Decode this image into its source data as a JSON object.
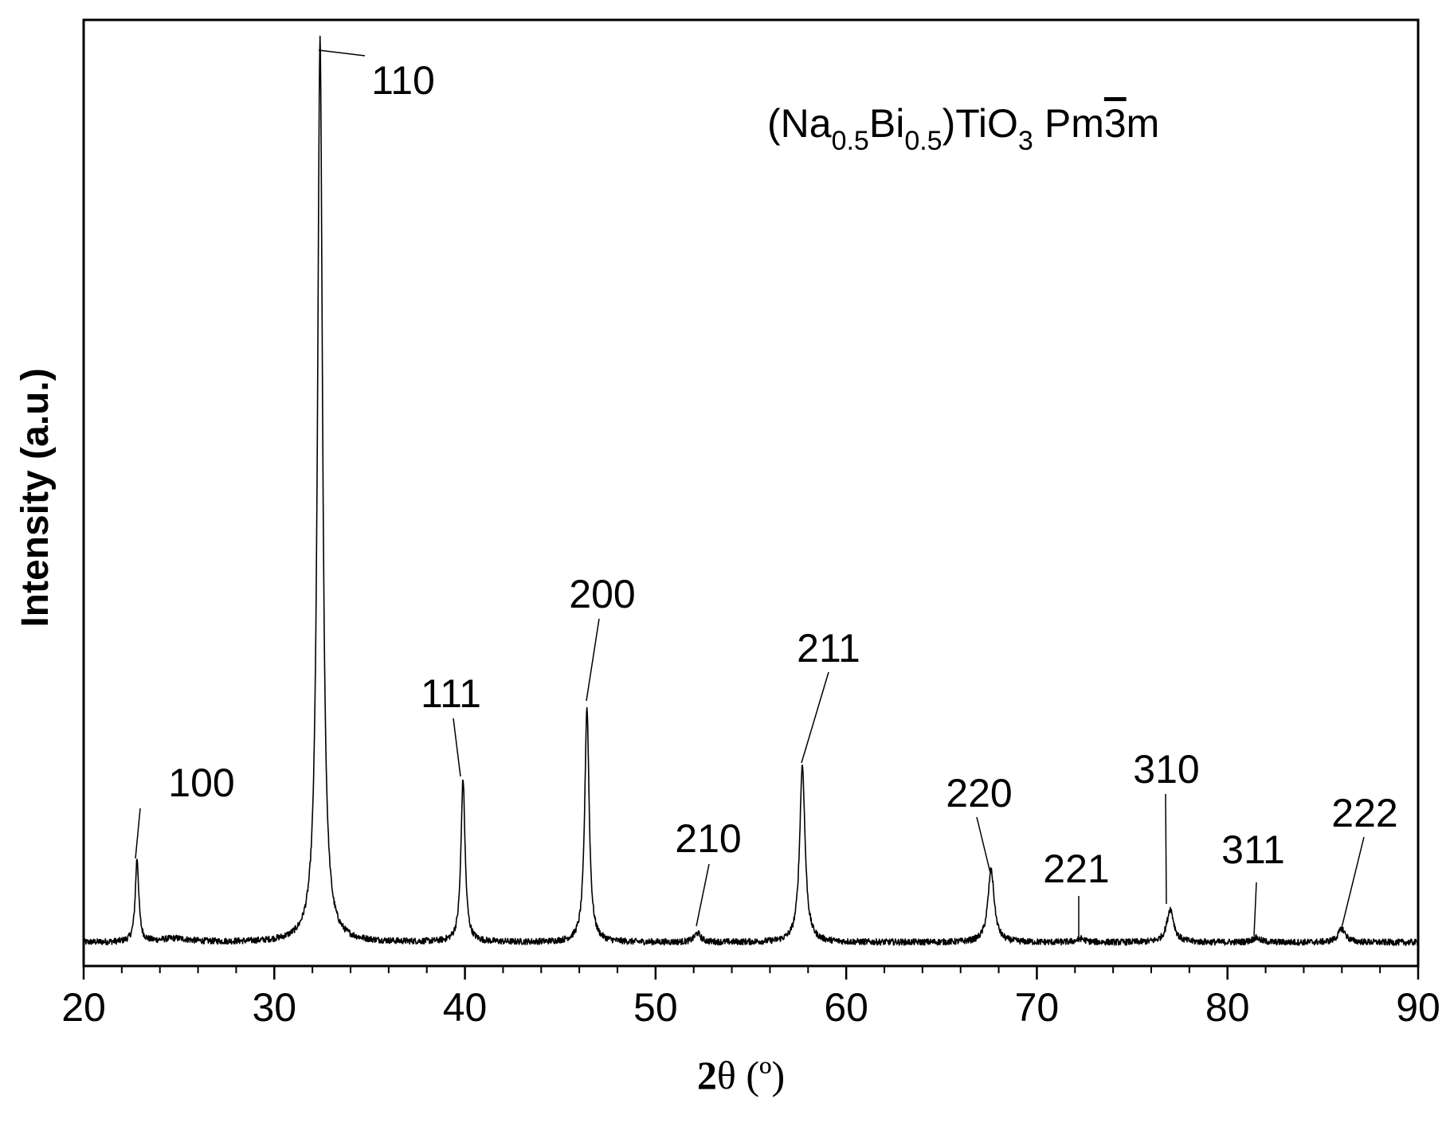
{
  "chart_data": {
    "type": "line",
    "xlabel_main": "2",
    "xlabel_symbol": "θ",
    "xlabel_unit": " (º)",
    "ylabel": "Intensity (a.u.)",
    "xlim": [
      20,
      90
    ],
    "ylim": [
      0,
      100
    ],
    "x_ticks": [
      20,
      30,
      40,
      50,
      60,
      70,
      80,
      90
    ],
    "x_minor_step": 2,
    "y_ticks_shown": false,
    "grid": false,
    "phase": {
      "prefix": "(Na",
      "sub1": "0.5",
      "mid": "Bi",
      "sub2": "0.5",
      "mid2": ")TiO",
      "sub3": "3",
      "space_group_pre": "Pm",
      "space_group_bar": "3",
      "space_group_post": "m"
    },
    "series": [
      {
        "baseline": 1.2,
        "noise": 0.35,
        "peaks": [
          {
            "x": 22.8,
            "y": 9.2,
            "w": 0.11
          },
          {
            "x": 24.8,
            "y": 0.4,
            "w": 0.9
          },
          {
            "x": 32.4,
            "y": 100,
            "w": 0.16
          },
          {
            "x": 39.9,
            "y": 18.0,
            "w": 0.13
          },
          {
            "x": 46.4,
            "y": 26.0,
            "w": 0.14
          },
          {
            "x": 52.2,
            "y": 1.0,
            "w": 0.2
          },
          {
            "x": 57.7,
            "y": 19.6,
            "w": 0.17
          },
          {
            "x": 67.6,
            "y": 8.0,
            "w": 0.2
          },
          {
            "x": 72.3,
            "y": 0.4,
            "w": 0.25
          },
          {
            "x": 77.0,
            "y": 3.7,
            "w": 0.22
          },
          {
            "x": 81.5,
            "y": 0.5,
            "w": 0.25
          },
          {
            "x": 86.0,
            "y": 1.5,
            "w": 0.24
          }
        ]
      }
    ],
    "annotations": [
      {
        "text": "100",
        "x": 22.8,
        "y": 9.2
      },
      {
        "text": "110",
        "x": 32.4,
        "y": 100
      },
      {
        "text": "111",
        "x": 39.9,
        "y": 18.0
      },
      {
        "text": "200",
        "x": 46.4,
        "y": 26.0
      },
      {
        "text": "210",
        "x": 52.2,
        "y": 1.0
      },
      {
        "text": "211",
        "x": 57.7,
        "y": 19.6
      },
      {
        "text": "220",
        "x": 67.6,
        "y": 8.0
      },
      {
        "text": "221",
        "x": 72.3,
        "y": 0.4
      },
      {
        "text": "310",
        "x": 77.0,
        "y": 3.7
      },
      {
        "text": "311",
        "x": 81.5,
        "y": 0.5
      },
      {
        "text": "222",
        "x": 86.0,
        "y": 1.5
      }
    ]
  }
}
